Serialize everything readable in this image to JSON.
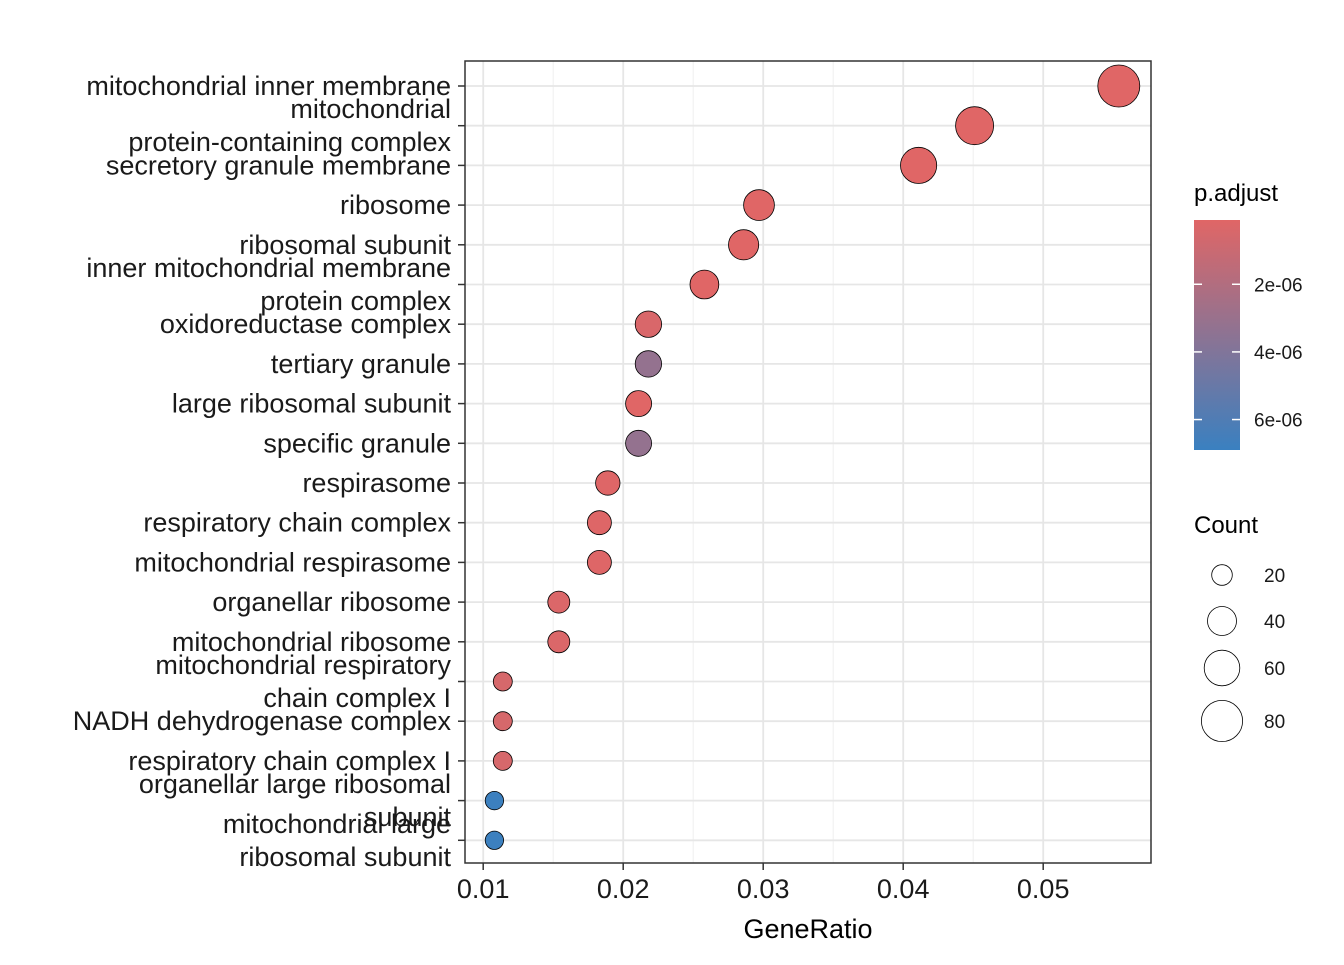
{
  "chart_data": {
    "type": "scatter",
    "title": "",
    "xlabel": "GeneRatio",
    "ylabel": "",
    "xlim": [
      0.0087,
      0.0577
    ],
    "x_ticks": [
      0.01,
      0.02,
      0.03,
      0.04,
      0.05
    ],
    "x_tick_labels": [
      "0.01",
      "0.02",
      "0.03",
      "0.04",
      "0.05"
    ],
    "grid": true,
    "legend_placement": "right",
    "terms": [
      {
        "label": [
          "mitochondrial inner membrane"
        ],
        "gene_ratio": 0.0554,
        "count": 83,
        "p_adjust": 1e-07
      },
      {
        "label": [
          "mitochondrial",
          "protein-containing complex"
        ],
        "gene_ratio": 0.0451,
        "count": 68,
        "p_adjust": 1e-07
      },
      {
        "label": [
          "secretory granule membrane"
        ],
        "gene_ratio": 0.0411,
        "count": 62,
        "p_adjust": 1e-07
      },
      {
        "label": [
          "ribosome"
        ],
        "gene_ratio": 0.0297,
        "count": 45,
        "p_adjust": 1e-07
      },
      {
        "label": [
          "ribosomal subunit"
        ],
        "gene_ratio": 0.0286,
        "count": 43,
        "p_adjust": 1e-07
      },
      {
        "label": [
          "inner mitochondrial membrane",
          "protein complex"
        ],
        "gene_ratio": 0.0258,
        "count": 39,
        "p_adjust": 1e-07
      },
      {
        "label": [
          "oxidoreductase complex"
        ],
        "gene_ratio": 0.0218,
        "count": 33,
        "p_adjust": 4e-07
      },
      {
        "label": [
          "tertiary granule"
        ],
        "gene_ratio": 0.0218,
        "count": 33,
        "p_adjust": 3.2e-06
      },
      {
        "label": [
          "large ribosomal subunit"
        ],
        "gene_ratio": 0.0211,
        "count": 32,
        "p_adjust": 1e-07
      },
      {
        "label": [
          "specific granule"
        ],
        "gene_ratio": 0.0211,
        "count": 32,
        "p_adjust": 3.2e-06
      },
      {
        "label": [
          "respirasome"
        ],
        "gene_ratio": 0.0189,
        "count": 28,
        "p_adjust": 2e-07
      },
      {
        "label": [
          "respiratory chain complex"
        ],
        "gene_ratio": 0.0183,
        "count": 27,
        "p_adjust": 2e-07
      },
      {
        "label": [
          "mitochondrial respirasome"
        ],
        "gene_ratio": 0.0183,
        "count": 27,
        "p_adjust": 2e-07
      },
      {
        "label": [
          "organellar ribosome"
        ],
        "gene_ratio": 0.0154,
        "count": 23,
        "p_adjust": 3e-07
      },
      {
        "label": [
          "mitochondrial ribosome"
        ],
        "gene_ratio": 0.0154,
        "count": 23,
        "p_adjust": 3e-07
      },
      {
        "label": [
          "mitochondrial respiratory",
          "chain complex I"
        ],
        "gene_ratio": 0.0114,
        "count": 17,
        "p_adjust": 5e-07
      },
      {
        "label": [
          "NADH dehydrogenase complex"
        ],
        "gene_ratio": 0.0114,
        "count": 17,
        "p_adjust": 5e-07
      },
      {
        "label": [
          "respiratory chain complex I"
        ],
        "gene_ratio": 0.0114,
        "count": 17,
        "p_adjust": 5e-07
      },
      {
        "label": [
          "organellar large ribosomal",
          "subunit"
        ],
        "gene_ratio": 0.0108,
        "count": 16,
        "p_adjust": 6.8e-06
      },
      {
        "label": [
          "mitochondrial large",
          "ribosomal subunit"
        ],
        "gene_ratio": 0.0108,
        "count": 16,
        "p_adjust": 6.8e-06
      }
    ],
    "color_legend": {
      "title": "p.adjust",
      "min": 1e-07,
      "max": 6.9e-06,
      "low_color": "#e06666",
      "high_color": "#3a80c0",
      "ticks": [
        {
          "value": 2e-06,
          "label": "2e-06"
        },
        {
          "value": 4e-06,
          "label": "4e-06"
        },
        {
          "value": 6e-06,
          "label": "6e-06"
        }
      ]
    },
    "size_legend": {
      "title": "Count",
      "entries": [
        {
          "value": 20,
          "label": "20"
        },
        {
          "value": 40,
          "label": "40"
        },
        {
          "value": 60,
          "label": "60"
        },
        {
          "value": 80,
          "label": "80"
        }
      ]
    }
  }
}
